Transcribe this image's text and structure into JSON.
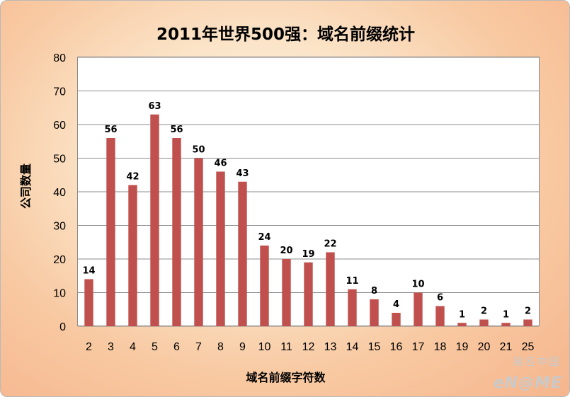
{
  "chart_data": {
    "type": "bar",
    "title": "2011年世界500强：域名前缀统计",
    "xlabel": "域名前缀字符数",
    "ylabel": "公司数量",
    "categories": [
      "2",
      "3",
      "4",
      "5",
      "6",
      "7",
      "8",
      "9",
      "10",
      "11",
      "12",
      "13",
      "14",
      "15",
      "16",
      "17",
      "18",
      "19",
      "20",
      "21",
      "25"
    ],
    "values": [
      14,
      56,
      42,
      63,
      56,
      50,
      46,
      43,
      24,
      20,
      19,
      22,
      11,
      8,
      4,
      10,
      6,
      1,
      2,
      1,
      2
    ],
    "ylim": [
      0,
      80
    ],
    "yticks": [
      0,
      10,
      20,
      30,
      40,
      50,
      60,
      70,
      80
    ],
    "grid": true,
    "legend": "none",
    "bar_color": "#c0504d"
  },
  "watermark": {
    "top_text": "易名中国",
    "bottom_text": "eN@ME"
  }
}
